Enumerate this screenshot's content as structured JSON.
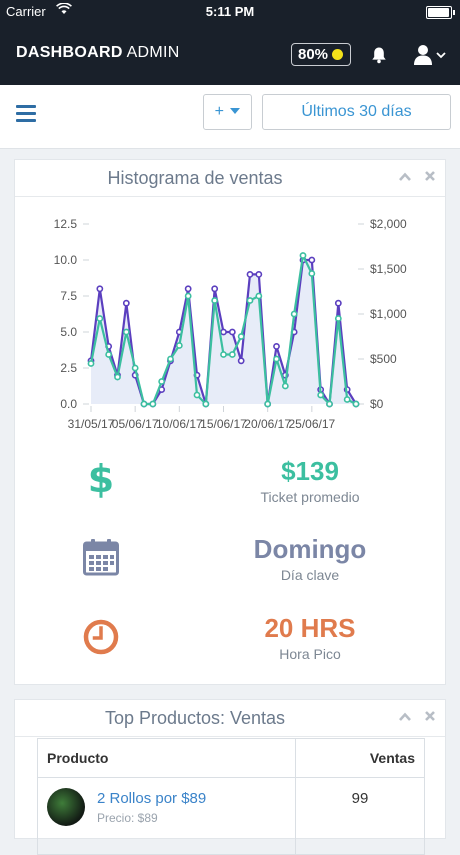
{
  "status_bar": {
    "carrier": "Carrier",
    "time": "5:11 PM"
  },
  "header": {
    "brand_bold": "DASHBOARD",
    "brand_light": "ADMIN",
    "battery_label": "80%",
    "battery_color": "#f3e21a"
  },
  "toolbar": {
    "add_label": "+",
    "range_label": "Últimos 30 días"
  },
  "histogram_card": {
    "title": "Histograma de ventas"
  },
  "chart_data": {
    "type": "line",
    "x": [
      "31/05/17",
      "01/06/17",
      "02/06/17",
      "03/06/17",
      "04/06/17",
      "05/06/17",
      "06/06/17",
      "07/06/17",
      "08/06/17",
      "09/06/17",
      "10/06/17",
      "11/06/17",
      "12/06/17",
      "13/06/17",
      "14/06/17",
      "15/06/17",
      "16/06/17",
      "17/06/17",
      "18/06/17",
      "19/06/17",
      "20/06/17",
      "21/06/17",
      "22/06/17",
      "23/06/17",
      "24/06/17",
      "25/06/17",
      "26/06/17",
      "27/06/17",
      "28/06/17",
      "29/06/17",
      "30/06/17"
    ],
    "x_tick_labels": [
      "31/05/17",
      "05/06/17",
      "10/06/17",
      "15/06/17",
      "20/06/17",
      "25/06/17"
    ],
    "y_left_ticks": [
      "0.0",
      "2.5",
      "5.0",
      "7.5",
      "10.0",
      "12.5"
    ],
    "y_right_ticks": [
      "$0",
      "$500",
      "$1,000",
      "$1,500",
      "$2,000"
    ],
    "ylim_left": [
      0,
      12.5
    ],
    "ylim_right": [
      0,
      2000
    ],
    "grid": false,
    "series": [
      {
        "axis": "left",
        "color": "#5b3fbf",
        "values": [
          3,
          8,
          4,
          2,
          7,
          2,
          0,
          0,
          1,
          3,
          5,
          8,
          2,
          0,
          8,
          5,
          5,
          3,
          9,
          9,
          0,
          4,
          2,
          5,
          10,
          10,
          1,
          0,
          7,
          1,
          0
        ]
      },
      {
        "axis": "right",
        "color": "#3cbfa0",
        "values": [
          450,
          950,
          550,
          300,
          800,
          400,
          0,
          0,
          250,
          500,
          650,
          1200,
          100,
          0,
          1150,
          550,
          550,
          750,
          1150,
          1200,
          0,
          500,
          200,
          1000,
          1650,
          1450,
          100,
          0,
          950,
          50,
          0
        ]
      }
    ]
  },
  "stats": [
    {
      "icon": "dollar-icon",
      "value": "$139",
      "label": "Ticket promedio",
      "color": "#3cbfa0"
    },
    {
      "icon": "calendar-icon",
      "value": "Domingo",
      "label": "Día clave",
      "color": "#7b86a6"
    },
    {
      "icon": "clock-icon",
      "value": "20 HRS",
      "label": "Hora Pico",
      "color": "#e07b4d"
    }
  ],
  "products_card": {
    "title": "Top Productos: Ventas",
    "columns": [
      "Producto",
      "Ventas"
    ],
    "rows": [
      {
        "name": "2 Rollos por $89",
        "price": "Precio: $89",
        "sales": "99"
      }
    ]
  }
}
